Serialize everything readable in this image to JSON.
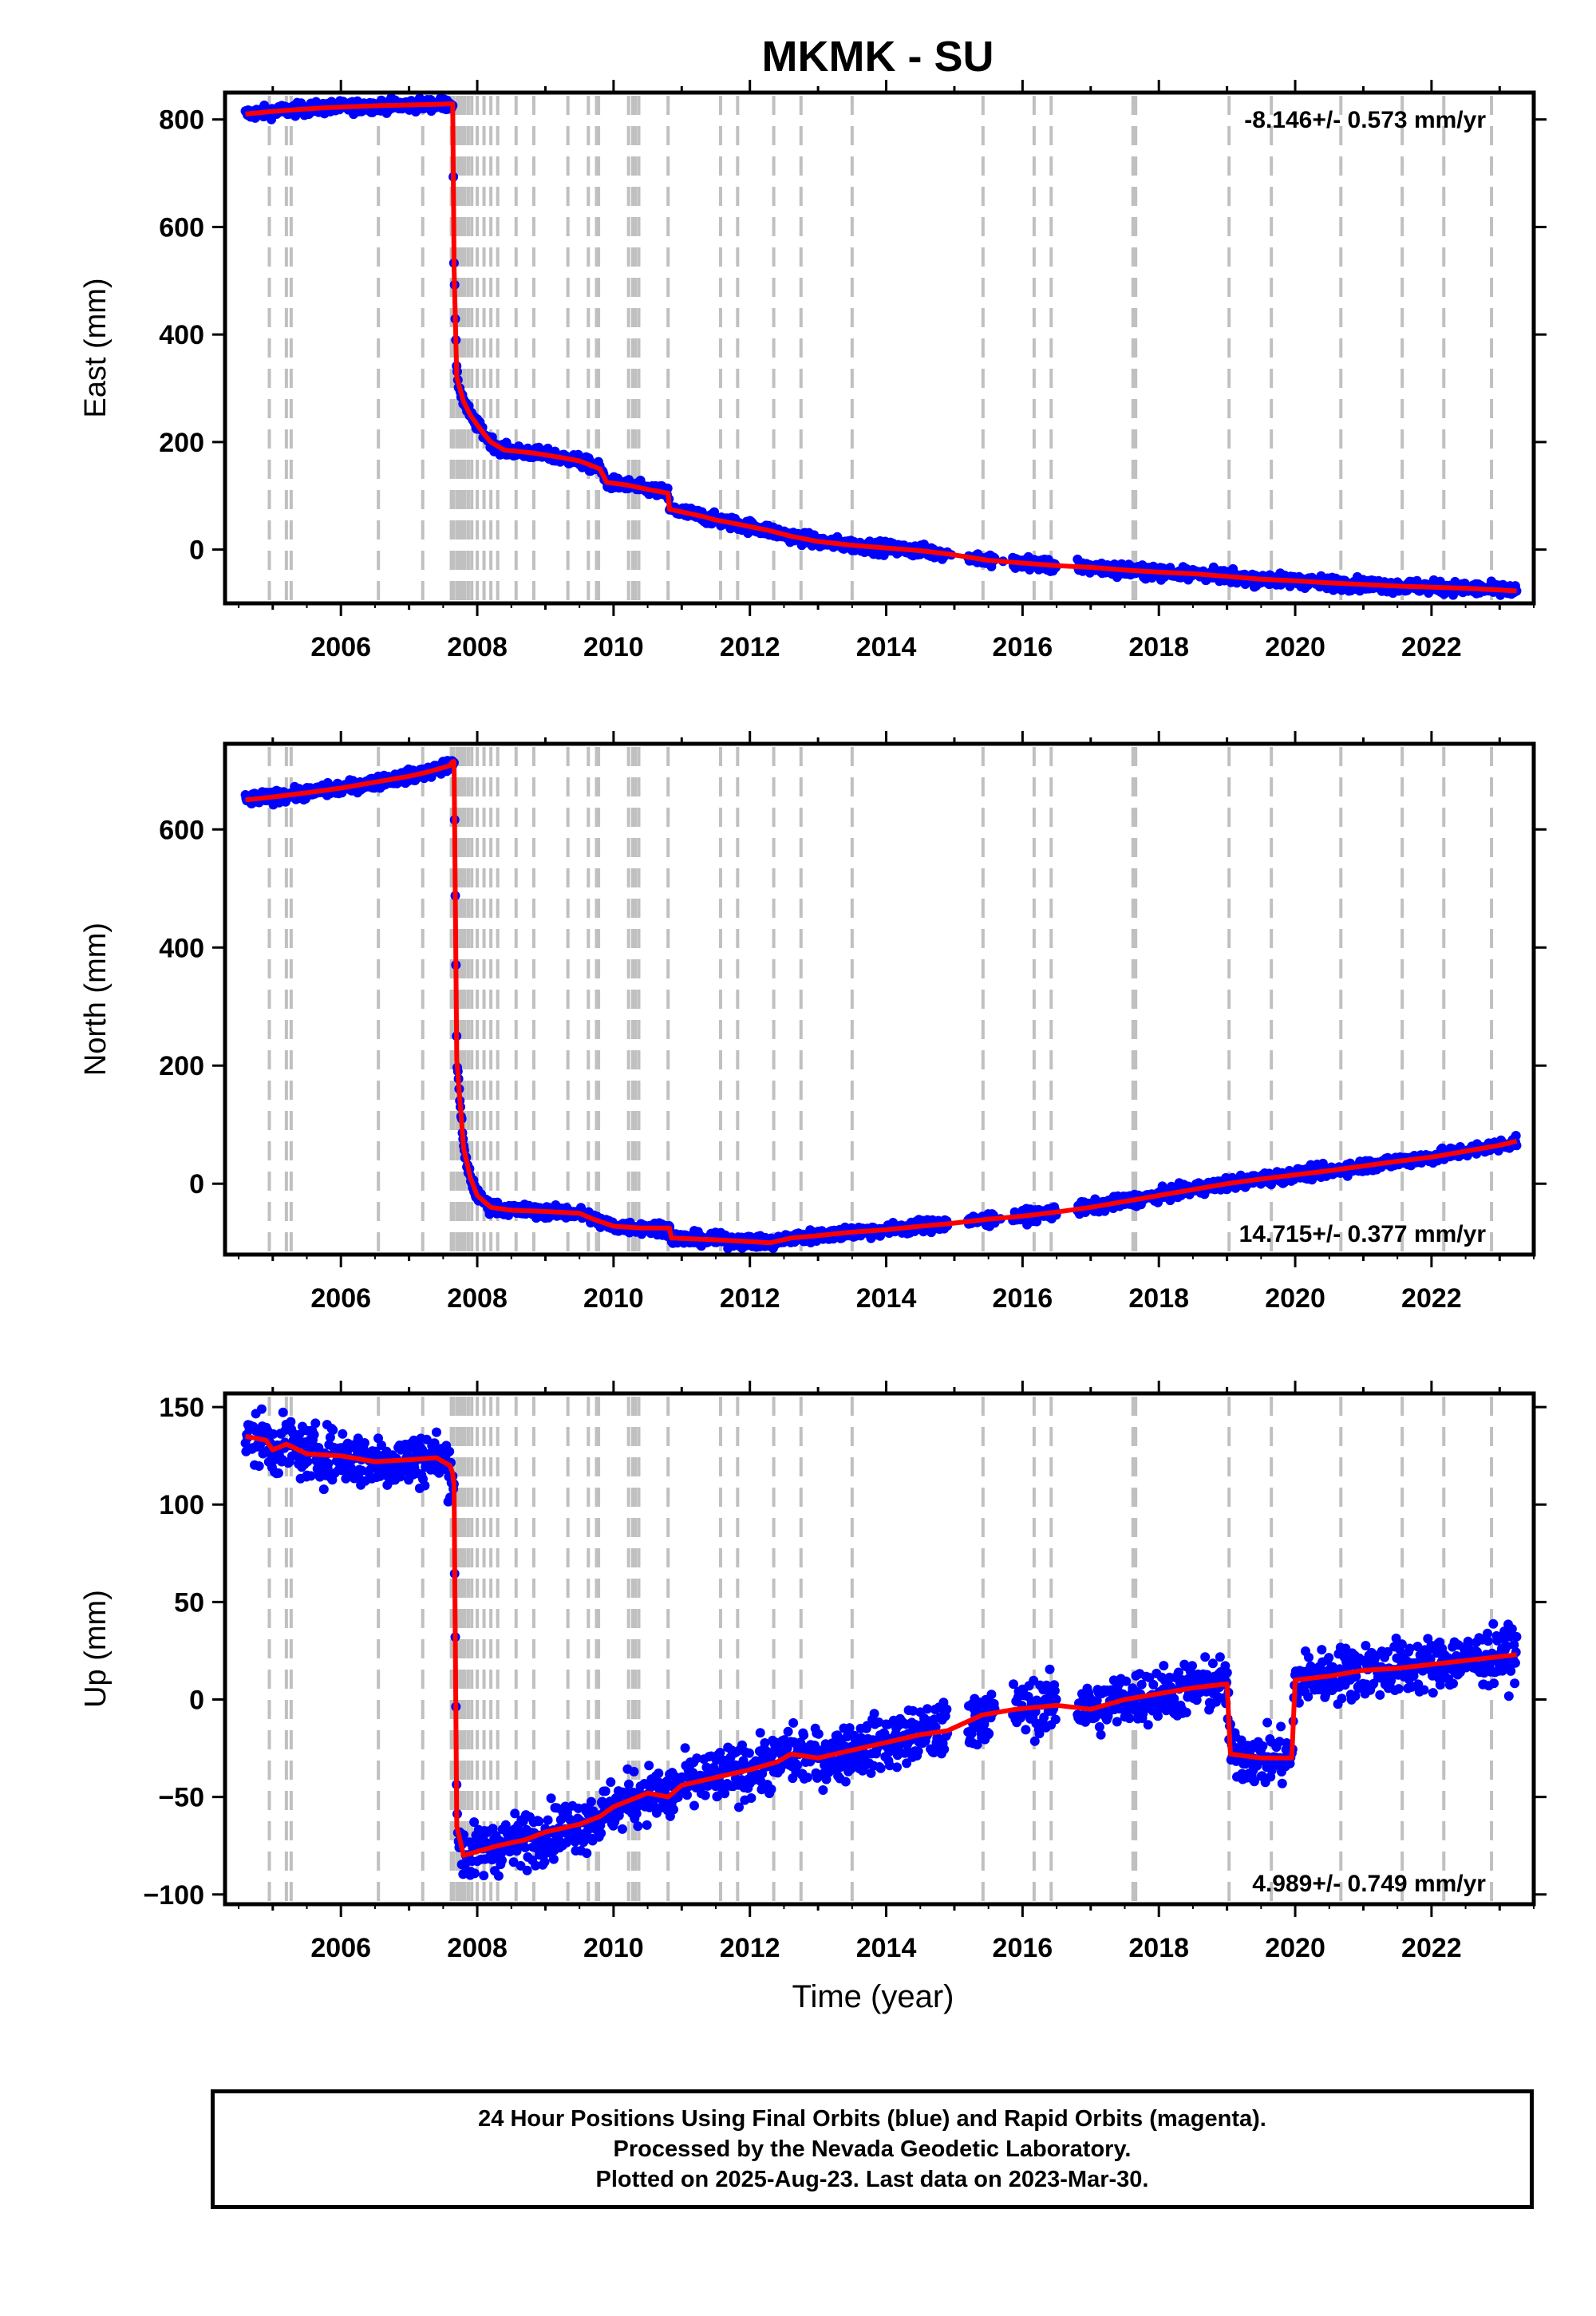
{
  "title": "MKMK - SU",
  "x_axis_label": "Time (year)",
  "x_tick_labels": [
    "2006",
    "2008",
    "2010",
    "2012",
    "2014",
    "2016",
    "2018",
    "2020",
    "2022"
  ],
  "caption": [
    "24 Hour Positions Using Final Orbits (blue) and Rapid Orbits (magenta).",
    "Processed by the Nevada Geodetic Laboratory.",
    "Plotted on 2025-Aug-23. Last data on 2023-Mar-30."
  ],
  "colors": {
    "data_points": "#0000ff",
    "model_line": "#ff0000",
    "event_lines": "#c0c0c0"
  },
  "chart_data": [
    {
      "type": "scatter",
      "ylabel": "East (mm)",
      "rate_label": "-8.146+/- 0.573 mm/yr",
      "rate_position": "top-right",
      "xlim": [
        2004.3,
        2023.5
      ],
      "ylim": [
        -100,
        850
      ],
      "y_ticks": [
        0,
        200,
        400,
        600,
        800
      ],
      "y_tick_labels": [
        "0",
        "200",
        "400",
        "600",
        "800"
      ],
      "event_lines": [
        2004.95,
        2005.2,
        2005.27,
        2006.55,
        2007.2,
        2007.62,
        2007.65,
        2007.7,
        2007.74,
        2007.78,
        2007.82,
        2007.87,
        2007.92,
        2008.0,
        2008.1,
        2008.2,
        2008.3,
        2008.57,
        2008.83,
        2009.33,
        2009.63,
        2009.75,
        2009.78,
        2010.22,
        2010.28,
        2010.32,
        2010.37,
        2010.8,
        2011.57,
        2011.82,
        2012.35,
        2012.75,
        2013.5,
        2015.42,
        2016.17,
        2016.42,
        2017.62,
        2017.66,
        2019.03,
        2019.65,
        2020.67,
        2021.57,
        2022.18,
        2022.88
      ],
      "gaps": [
        [
          2014.9,
          2015.2
        ],
        [
          2015.6,
          2015.85
        ],
        [
          2016.5,
          2016.8
        ]
      ],
      "series": [
        {
          "name": "positions",
          "x": [
            2004.6,
            2005.0,
            2005.3,
            2005.8,
            2006.2,
            2006.6,
            2007.0,
            2007.4,
            2007.6,
            2007.64,
            2007.66,
            2007.7,
            2007.8,
            2007.9,
            2008.0,
            2008.1,
            2008.2,
            2008.4,
            2008.8,
            2009.2,
            2009.5,
            2009.8,
            2009.9,
            2010.2,
            2010.5,
            2010.8,
            2010.82,
            2011.3,
            2011.5,
            2011.8,
            2012.3,
            2012.6,
            2013.0,
            2013.5,
            2014.0,
            2014.5,
            2014.9,
            2015.5,
            2016.0,
            2016.5,
            2017.0,
            2017.5,
            2018.0,
            2018.5,
            2019.0,
            2019.5,
            2020.0,
            2020.5,
            2021.0,
            2021.5,
            2022.0,
            2022.5,
            2023.0,
            2023.25
          ],
          "y": [
            810,
            815,
            818,
            822,
            824,
            826,
            827,
            828,
            829,
            829,
            525,
            320,
            275,
            250,
            232,
            215,
            200,
            185,
            180,
            172,
            165,
            150,
            125,
            120,
            112,
            105,
            75,
            62,
            55,
            48,
            35,
            25,
            15,
            8,
            3,
            -2,
            -8,
            -20,
            -25,
            -30,
            -33,
            -38,
            -42,
            -45,
            -50,
            -55,
            -58,
            -62,
            -65,
            -68,
            -70,
            -72,
            -75,
            -77
          ]
        }
      ]
    },
    {
      "type": "scatter",
      "ylabel": "North (mm)",
      "rate_label": "14.715+/- 0.377 mm/yr",
      "rate_position": "bottom-right",
      "xlim": [
        2004.3,
        2023.5
      ],
      "ylim": [
        -120,
        745
      ],
      "y_ticks": [
        0,
        200,
        400,
        600
      ],
      "y_tick_labels": [
        "0",
        "200",
        "400",
        "600"
      ],
      "event_lines": [
        2004.95,
        2005.2,
        2005.27,
        2006.55,
        2007.2,
        2007.62,
        2007.65,
        2007.7,
        2007.74,
        2007.78,
        2007.82,
        2007.87,
        2007.92,
        2008.0,
        2008.1,
        2008.2,
        2008.3,
        2008.57,
        2008.83,
        2009.33,
        2009.63,
        2009.75,
        2009.78,
        2010.22,
        2010.28,
        2010.32,
        2010.37,
        2010.8,
        2011.57,
        2011.82,
        2012.35,
        2012.75,
        2013.5,
        2015.42,
        2016.17,
        2016.42,
        2017.62,
        2017.66,
        2019.03,
        2019.65,
        2020.67,
        2021.57,
        2022.18,
        2022.88
      ],
      "gaps": [
        [
          2014.9,
          2015.2
        ],
        [
          2015.6,
          2015.85
        ],
        [
          2016.5,
          2016.8
        ]
      ],
      "series": [
        {
          "name": "positions",
          "x": [
            2004.6,
            2005.0,
            2005.5,
            2006.0,
            2006.5,
            2007.0,
            2007.3,
            2007.6,
            2007.64,
            2007.66,
            2007.7,
            2007.8,
            2007.9,
            2008.0,
            2008.2,
            2008.5,
            2009.0,
            2009.5,
            2009.7,
            2010.0,
            2010.4,
            2010.82,
            2010.85,
            2011.5,
            2012.0,
            2012.3,
            2012.6,
            2013.0,
            2013.5,
            2014.0,
            2014.5,
            2014.9,
            2015.5,
            2016.0,
            2016.5,
            2017.0,
            2017.5,
            2018.0,
            2018.5,
            2019.0,
            2019.5,
            2020.0,
            2020.5,
            2021.0,
            2021.5,
            2022.0,
            2022.5,
            2023.0,
            2023.25
          ],
          "y": [
            650,
            655,
            662,
            670,
            680,
            690,
            698,
            708,
            715,
            715,
            210,
            60,
            10,
            -20,
            -40,
            -45,
            -47,
            -50,
            -60,
            -72,
            -75,
            -75,
            -92,
            -95,
            -98,
            -100,
            -92,
            -88,
            -82,
            -78,
            -72,
            -68,
            -60,
            -55,
            -48,
            -40,
            -30,
            -20,
            -10,
            0,
            8,
            15,
            22,
            30,
            38,
            45,
            55,
            65,
            72
          ]
        }
      ]
    },
    {
      "type": "scatter",
      "ylabel": "Up (mm)",
      "rate_label": "4.989+/- 0.749 mm/yr",
      "rate_position": "bottom-right",
      "xlim": [
        2004.3,
        2023.5
      ],
      "ylim": [
        -105,
        157
      ],
      "y_ticks": [
        -100,
        -50,
        0,
        50,
        100,
        150
      ],
      "y_tick_labels": [
        "−100",
        "−50",
        "0",
        "50",
        "100",
        "150"
      ],
      "event_lines": [
        2004.95,
        2005.2,
        2005.27,
        2006.55,
        2007.2,
        2007.62,
        2007.65,
        2007.7,
        2007.74,
        2007.78,
        2007.82,
        2007.87,
        2007.92,
        2008.0,
        2008.1,
        2008.2,
        2008.3,
        2008.57,
        2008.83,
        2009.33,
        2009.63,
        2009.75,
        2009.78,
        2010.22,
        2010.28,
        2010.32,
        2010.37,
        2010.8,
        2011.57,
        2011.82,
        2012.35,
        2012.75,
        2013.5,
        2015.42,
        2016.17,
        2016.42,
        2017.62,
        2017.66,
        2019.03,
        2019.65,
        2020.67,
        2021.57,
        2022.18,
        2022.88
      ],
      "gaps": [
        [
          2014.9,
          2015.2
        ],
        [
          2015.6,
          2015.85
        ],
        [
          2016.5,
          2016.8
        ]
      ],
      "series": [
        {
          "name": "positions",
          "x": [
            2004.6,
            2004.9,
            2005.0,
            2005.2,
            2005.5,
            2006.0,
            2006.5,
            2007.0,
            2007.4,
            2007.6,
            2007.64,
            2007.66,
            2007.7,
            2007.8,
            2008.0,
            2008.3,
            2008.7,
            2009.0,
            2009.5,
            2009.8,
            2010.0,
            2010.5,
            2010.8,
            2011.0,
            2011.5,
            2012.0,
            2012.4,
            2012.6,
            2013.0,
            2013.5,
            2014.0,
            2014.5,
            2014.9,
            2015.4,
            2015.9,
            2016.5,
            2017.0,
            2017.5,
            2018.0,
            2018.5,
            2019.0,
            2019.05,
            2019.5,
            2019.95,
            2020.0,
            2020.5,
            2021.0,
            2021.5,
            2022.0,
            2022.5,
            2023.0,
            2023.25
          ],
          "y": [
            135,
            133,
            128,
            131,
            126,
            125,
            122,
            123,
            124,
            120,
            116,
            110,
            -65,
            -80,
            -78,
            -75,
            -72,
            -68,
            -64,
            -60,
            -55,
            -48,
            -50,
            -44,
            -40,
            -36,
            -32,
            -28,
            -30,
            -26,
            -22,
            -18,
            -16,
            -8,
            -5,
            -3,
            -5,
            0,
            3,
            6,
            8,
            -28,
            -30,
            -30,
            10,
            12,
            15,
            16,
            18,
            20,
            22,
            23
          ]
        }
      ]
    }
  ]
}
